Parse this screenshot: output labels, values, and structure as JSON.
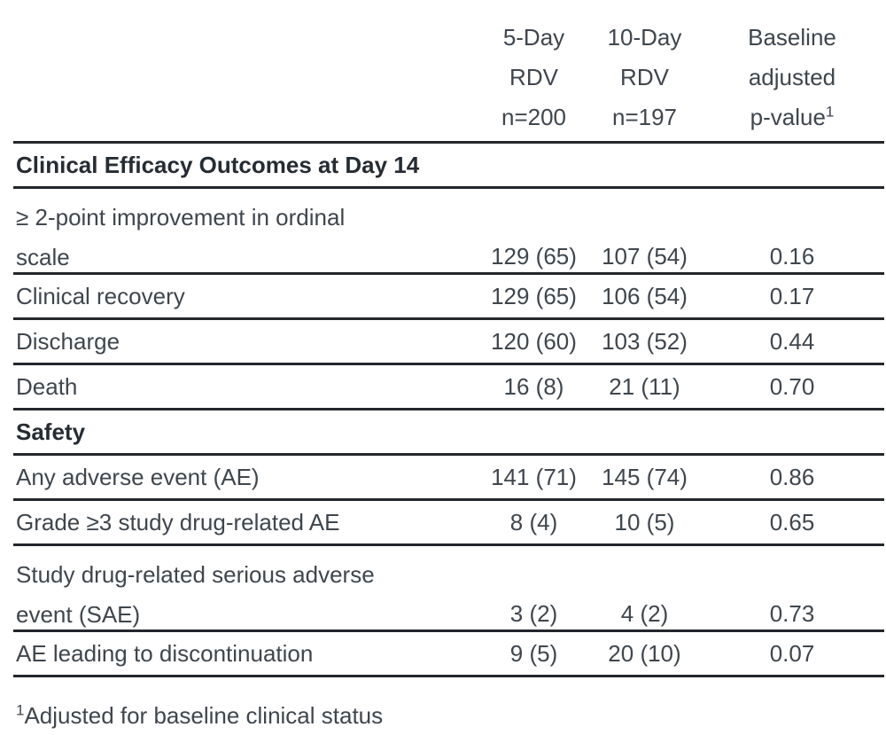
{
  "colors": {
    "background": "#ffffff",
    "text_regular": "#3f464d",
    "text_bold": "#262c33",
    "rule": "#23272c"
  },
  "header": {
    "cols": [
      {
        "l1": "5-Day",
        "l2": "RDV",
        "l3": "n=200"
      },
      {
        "l1": "10-Day",
        "l2": "RDV",
        "l3": "n=197"
      },
      {
        "l1": "Baseline",
        "l2": "adjusted",
        "l3": "p-value",
        "sup": "1"
      }
    ]
  },
  "sections": [
    {
      "title": "Clinical Efficacy Outcomes at Day 14",
      "rows": [
        {
          "label_l1": "≥ 2-point improvement in ordinal",
          "label_l2": "scale",
          "c1": "129 (65)",
          "c2": "107 (54)",
          "p": "0.16"
        },
        {
          "label": "Clinical recovery",
          "c1": "129 (65)",
          "c2": "106 (54)",
          "p": "0.17"
        },
        {
          "label": "Discharge",
          "c1": "120 (60)",
          "c2": "103 (52)",
          "p": "0.44"
        },
        {
          "label": "Death",
          "c1": "16 (8)",
          "c2": "21 (11)",
          "p": "0.70"
        }
      ]
    },
    {
      "title": "Safety",
      "rows": [
        {
          "label": "Any adverse event (AE)",
          "c1": "141 (71)",
          "c2": "145 (74)",
          "p": "0.86"
        },
        {
          "label": "Grade ≥3 study drug-related AE",
          "c1": "8 (4)",
          "c2": "10 (5)",
          "p": "0.65"
        },
        {
          "label_l1": "Study drug-related serious adverse",
          "label_l2": "event (SAE)",
          "c1": "3 (2)",
          "c2": "4 (2)",
          "p": "0.73"
        },
        {
          "label": "AE leading to discontinuation",
          "c1": "9 (5)",
          "c2": "20 (10)",
          "p": "0.07"
        }
      ]
    }
  ],
  "footnote": {
    "sup": "1",
    "text": "Adjusted for baseline clinical status"
  }
}
